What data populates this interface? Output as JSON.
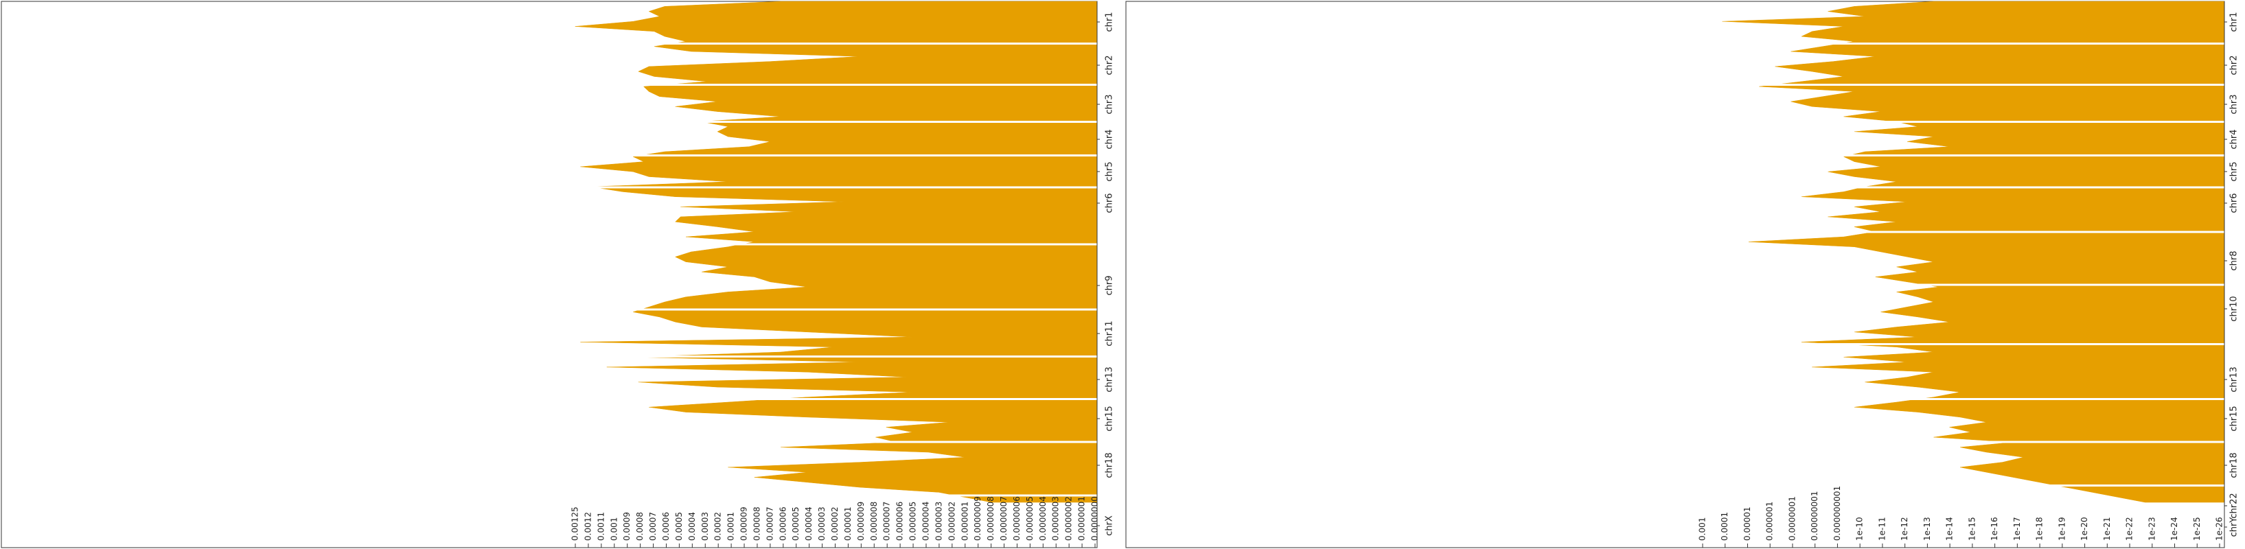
{
  "colors": {
    "fill": "#E69F00",
    "frame": "#333333",
    "background": "#ffffff"
  },
  "chart_data": [
    {
      "type": "area",
      "orientation": "horizontal",
      "xscale": "log-reversed",
      "xlabel": "",
      "ylabel": "",
      "title": "",
      "grid": false,
      "chromosomes": [
        "chr1",
        "chr2",
        "chr3",
        "chr4",
        "chr5",
        "chr6",
        "chr9",
        "chr11",
        "chr13",
        "chr15",
        "chr18",
        "chrX"
      ],
      "ticks": [
        "0.00125",
        "0.0012",
        "0.0011",
        "0.001",
        "0.0009",
        "0.0008",
        "0.0007",
        "0.0006",
        "0.0005",
        "0.0004",
        "0.0003",
        "0.0002",
        "0.0001",
        "0.00009",
        "0.00008",
        "0.00007",
        "0.00006",
        "0.00005",
        "0.00004",
        "0.00003",
        "0.00002",
        "0.00001",
        "0.000009",
        "0.000008",
        "0.000007",
        "0.000006",
        "0.000005",
        "0.000004",
        "0.000003",
        "0.000002",
        "0.000001",
        "0.0000009",
        "0.0000008",
        "0.0000007",
        "0.0000006",
        "0.0000005",
        "0.0000004",
        "0.0000003",
        "0.0000002",
        "0.0000001",
        "0.0000000"
      ],
      "profile": [
        {
          "y": 0.0,
          "v": 0.6
        },
        {
          "y": 0.01,
          "v": 0.82
        },
        {
          "y": 0.02,
          "v": 0.85
        },
        {
          "y": 0.03,
          "v": 0.83
        },
        {
          "y": 0.04,
          "v": 0.88
        },
        {
          "y": 0.05,
          "v": 0.99
        },
        {
          "y": 0.06,
          "v": 0.84
        },
        {
          "y": 0.07,
          "v": 0.82
        },
        {
          "y": 0.08,
          "v": 0.78
        },
        {
          "y": 0.09,
          "v": 0.84
        },
        {
          "y": 0.1,
          "v": 0.77
        },
        {
          "y": 0.11,
          "v": 0.45
        },
        {
          "y": 0.12,
          "v": 0.62
        },
        {
          "y": 0.13,
          "v": 0.85
        },
        {
          "y": 0.14,
          "v": 0.87
        },
        {
          "y": 0.15,
          "v": 0.84
        },
        {
          "y": 0.16,
          "v": 0.74
        },
        {
          "y": 0.17,
          "v": 0.86
        },
        {
          "y": 0.18,
          "v": 0.85
        },
        {
          "y": 0.19,
          "v": 0.83
        },
        {
          "y": 0.2,
          "v": 0.72
        },
        {
          "y": 0.21,
          "v": 0.8
        },
        {
          "y": 0.22,
          "v": 0.72
        },
        {
          "y": 0.23,
          "v": 0.6
        },
        {
          "y": 0.24,
          "v": 0.75
        },
        {
          "y": 0.25,
          "v": 0.7
        },
        {
          "y": 0.26,
          "v": 0.72
        },
        {
          "y": 0.27,
          "v": 0.7
        },
        {
          "y": 0.28,
          "v": 0.62
        },
        {
          "y": 0.29,
          "v": 0.66
        },
        {
          "y": 0.3,
          "v": 0.82
        },
        {
          "y": 0.31,
          "v": 0.88
        },
        {
          "y": 0.32,
          "v": 0.86
        },
        {
          "y": 0.33,
          "v": 0.98
        },
        {
          "y": 0.34,
          "v": 0.88
        },
        {
          "y": 0.35,
          "v": 0.85
        },
        {
          "y": 0.36,
          "v": 0.7
        },
        {
          "y": 0.37,
          "v": 0.96
        },
        {
          "y": 0.38,
          "v": 0.9
        },
        {
          "y": 0.39,
          "v": 0.8
        },
        {
          "y": 0.4,
          "v": 0.48
        },
        {
          "y": 0.41,
          "v": 0.79
        },
        {
          "y": 0.42,
          "v": 0.57
        },
        {
          "y": 0.43,
          "v": 0.79
        },
        {
          "y": 0.44,
          "v": 0.8
        },
        {
          "y": 0.45,
          "v": 0.72
        },
        {
          "y": 0.46,
          "v": 0.65
        },
        {
          "y": 0.47,
          "v": 0.78
        },
        {
          "y": 0.48,
          "v": 0.65
        },
        {
          "y": 0.49,
          "v": 0.7
        },
        {
          "y": 0.5,
          "v": 0.77
        },
        {
          "y": 0.51,
          "v": 0.8
        },
        {
          "y": 0.52,
          "v": 0.78
        },
        {
          "y": 0.53,
          "v": 0.7
        },
        {
          "y": 0.54,
          "v": 0.75
        },
        {
          "y": 0.55,
          "v": 0.65
        },
        {
          "y": 0.56,
          "v": 0.62
        },
        {
          "y": 0.57,
          "v": 0.55
        },
        {
          "y": 0.58,
          "v": 0.7
        },
        {
          "y": 0.59,
          "v": 0.78
        },
        {
          "y": 0.6,
          "v": 0.82
        },
        {
          "y": 0.61,
          "v": 0.85
        },
        {
          "y": 0.62,
          "v": 0.88
        },
        {
          "y": 0.63,
          "v": 0.83
        },
        {
          "y": 0.64,
          "v": 0.8
        },
        {
          "y": 0.65,
          "v": 0.75
        },
        {
          "y": 0.66,
          "v": 0.55
        },
        {
          "y": 0.67,
          "v": 0.35
        },
        {
          "y": 0.68,
          "v": 0.98
        },
        {
          "y": 0.69,
          "v": 0.5
        },
        {
          "y": 0.7,
          "v": 0.6
        },
        {
          "y": 0.71,
          "v": 0.88
        },
        {
          "y": 0.72,
          "v": 0.45
        },
        {
          "y": 0.73,
          "v": 0.93
        },
        {
          "y": 0.74,
          "v": 0.55
        },
        {
          "y": 0.75,
          "v": 0.36
        },
        {
          "y": 0.76,
          "v": 0.87
        },
        {
          "y": 0.77,
          "v": 0.72
        },
        {
          "y": 0.78,
          "v": 0.35
        },
        {
          "y": 0.79,
          "v": 0.55
        },
        {
          "y": 0.8,
          "v": 0.7
        },
        {
          "y": 0.81,
          "v": 0.85
        },
        {
          "y": 0.82,
          "v": 0.78
        },
        {
          "y": 0.83,
          "v": 0.55
        },
        {
          "y": 0.84,
          "v": 0.28
        },
        {
          "y": 0.85,
          "v": 0.4
        },
        {
          "y": 0.86,
          "v": 0.35
        },
        {
          "y": 0.87,
          "v": 0.42
        },
        {
          "y": 0.88,
          "v": 0.38
        },
        {
          "y": 0.89,
          "v": 0.6
        },
        {
          "y": 0.9,
          "v": 0.32
        },
        {
          "y": 0.91,
          "v": 0.25
        },
        {
          "y": 0.92,
          "v": 0.45
        },
        {
          "y": 0.93,
          "v": 0.7
        },
        {
          "y": 0.94,
          "v": 0.55
        },
        {
          "y": 0.95,
          "v": 0.65
        },
        {
          "y": 0.96,
          "v": 0.55
        },
        {
          "y": 0.97,
          "v": 0.45
        },
        {
          "y": 0.98,
          "v": 0.3
        },
        {
          "y": 0.99,
          "v": 0.25
        },
        {
          "y": 1.0,
          "v": 0.2
        }
      ]
    },
    {
      "type": "area",
      "orientation": "horizontal",
      "xscale": "log-reversed",
      "xlabel": "",
      "ylabel": "",
      "title": "",
      "grid": false,
      "chromosomes": [
        "chr1",
        "chr2",
        "chr3",
        "chr4",
        "chr5",
        "chr6",
        "chr8",
        "chr10",
        "chr13",
        "chr15",
        "chr18",
        "chr22",
        "chrY"
      ],
      "ticks": [
        "0.001",
        "0.0001",
        "0.00001",
        "0.000001",
        "0.0000001",
        "0.00000001",
        "0.000000001",
        "1e-10",
        "1e-11",
        "1e-12",
        "1e-13",
        "1e-14",
        "1e-15",
        "1e-16",
        "1e-17",
        "1e-18",
        "1e-19",
        "1e-20",
        "1e-21",
        "1e-22",
        "1e-23",
        "1e-24",
        "1e-25",
        "1e-26"
      ],
      "profile": [
        {
          "y": 0.0,
          "v": 0.55
        },
        {
          "y": 0.01,
          "v": 0.7
        },
        {
          "y": 0.02,
          "v": 0.75
        },
        {
          "y": 0.03,
          "v": 0.68
        },
        {
          "y": 0.04,
          "v": 0.95
        },
        {
          "y": 0.05,
          "v": 0.72
        },
        {
          "y": 0.06,
          "v": 0.78
        },
        {
          "y": 0.07,
          "v": 0.8
        },
        {
          "y": 0.08,
          "v": 0.7
        },
        {
          "y": 0.09,
          "v": 0.76
        },
        {
          "y": 0.1,
          "v": 0.82
        },
        {
          "y": 0.11,
          "v": 0.66
        },
        {
          "y": 0.12,
          "v": 0.74
        },
        {
          "y": 0.13,
          "v": 0.85
        },
        {
          "y": 0.14,
          "v": 0.78
        },
        {
          "y": 0.15,
          "v": 0.72
        },
        {
          "y": 0.16,
          "v": 0.8
        },
        {
          "y": 0.17,
          "v": 0.88
        },
        {
          "y": 0.18,
          "v": 0.7
        },
        {
          "y": 0.19,
          "v": 0.76
        },
        {
          "y": 0.2,
          "v": 0.82
        },
        {
          "y": 0.21,
          "v": 0.78
        },
        {
          "y": 0.22,
          "v": 0.65
        },
        {
          "y": 0.23,
          "v": 0.72
        },
        {
          "y": 0.24,
          "v": 0.62
        },
        {
          "y": 0.25,
          "v": 0.58
        },
        {
          "y": 0.26,
          "v": 0.7
        },
        {
          "y": 0.27,
          "v": 0.55
        },
        {
          "y": 0.28,
          "v": 0.6
        },
        {
          "y": 0.29,
          "v": 0.52
        },
        {
          "y": 0.3,
          "v": 0.68
        },
        {
          "y": 0.31,
          "v": 0.72
        },
        {
          "y": 0.32,
          "v": 0.7
        },
        {
          "y": 0.33,
          "v": 0.65
        },
        {
          "y": 0.34,
          "v": 0.75
        },
        {
          "y": 0.35,
          "v": 0.7
        },
        {
          "y": 0.36,
          "v": 0.62
        },
        {
          "y": 0.37,
          "v": 0.68
        },
        {
          "y": 0.38,
          "v": 0.72
        },
        {
          "y": 0.39,
          "v": 0.8
        },
        {
          "y": 0.4,
          "v": 0.6
        },
        {
          "y": 0.41,
          "v": 0.7
        },
        {
          "y": 0.42,
          "v": 0.65
        },
        {
          "y": 0.43,
          "v": 0.75
        },
        {
          "y": 0.44,
          "v": 0.62
        },
        {
          "y": 0.45,
          "v": 0.7
        },
        {
          "y": 0.46,
          "v": 0.66
        },
        {
          "y": 0.47,
          "v": 0.72
        },
        {
          "y": 0.48,
          "v": 0.9
        },
        {
          "y": 0.49,
          "v": 0.7
        },
        {
          "y": 0.5,
          "v": 0.65
        },
        {
          "y": 0.51,
          "v": 0.6
        },
        {
          "y": 0.52,
          "v": 0.55
        },
        {
          "y": 0.53,
          "v": 0.62
        },
        {
          "y": 0.54,
          "v": 0.58
        },
        {
          "y": 0.55,
          "v": 0.66
        },
        {
          "y": 0.56,
          "v": 0.6
        },
        {
          "y": 0.57,
          "v": 0.54
        },
        {
          "y": 0.58,
          "v": 0.62
        },
        {
          "y": 0.59,
          "v": 0.58
        },
        {
          "y": 0.6,
          "v": 0.55
        },
        {
          "y": 0.61,
          "v": 0.6
        },
        {
          "y": 0.62,
          "v": 0.65
        },
        {
          "y": 0.63,
          "v": 0.58
        },
        {
          "y": 0.64,
          "v": 0.52
        },
        {
          "y": 0.65,
          "v": 0.62
        },
        {
          "y": 0.66,
          "v": 0.7
        },
        {
          "y": 0.67,
          "v": 0.58
        },
        {
          "y": 0.68,
          "v": 0.8
        },
        {
          "y": 0.69,
          "v": 0.62
        },
        {
          "y": 0.7,
          "v": 0.55
        },
        {
          "y": 0.71,
          "v": 0.72
        },
        {
          "y": 0.72,
          "v": 0.6
        },
        {
          "y": 0.73,
          "v": 0.78
        },
        {
          "y": 0.74,
          "v": 0.55
        },
        {
          "y": 0.75,
          "v": 0.6
        },
        {
          "y": 0.76,
          "v": 0.68
        },
        {
          "y": 0.77,
          "v": 0.58
        },
        {
          "y": 0.78,
          "v": 0.5
        },
        {
          "y": 0.79,
          "v": 0.55
        },
        {
          "y": 0.8,
          "v": 0.62
        },
        {
          "y": 0.81,
          "v": 0.7
        },
        {
          "y": 0.82,
          "v": 0.58
        },
        {
          "y": 0.83,
          "v": 0.5
        },
        {
          "y": 0.84,
          "v": 0.45
        },
        {
          "y": 0.85,
          "v": 0.52
        },
        {
          "y": 0.86,
          "v": 0.48
        },
        {
          "y": 0.87,
          "v": 0.55
        },
        {
          "y": 0.88,
          "v": 0.4
        },
        {
          "y": 0.89,
          "v": 0.5
        },
        {
          "y": 0.9,
          "v": 0.45
        },
        {
          "y": 0.91,
          "v": 0.38
        },
        {
          "y": 0.92,
          "v": 0.42
        },
        {
          "y": 0.93,
          "v": 0.5
        },
        {
          "y": 0.94,
          "v": 0.45
        },
        {
          "y": 0.95,
          "v": 0.4
        },
        {
          "y": 0.96,
          "v": 0.35
        },
        {
          "y": 0.97,
          "v": 0.3
        },
        {
          "y": 0.98,
          "v": 0.25
        },
        {
          "y": 0.99,
          "v": 0.2
        },
        {
          "y": 1.0,
          "v": 0.15
        }
      ]
    }
  ]
}
